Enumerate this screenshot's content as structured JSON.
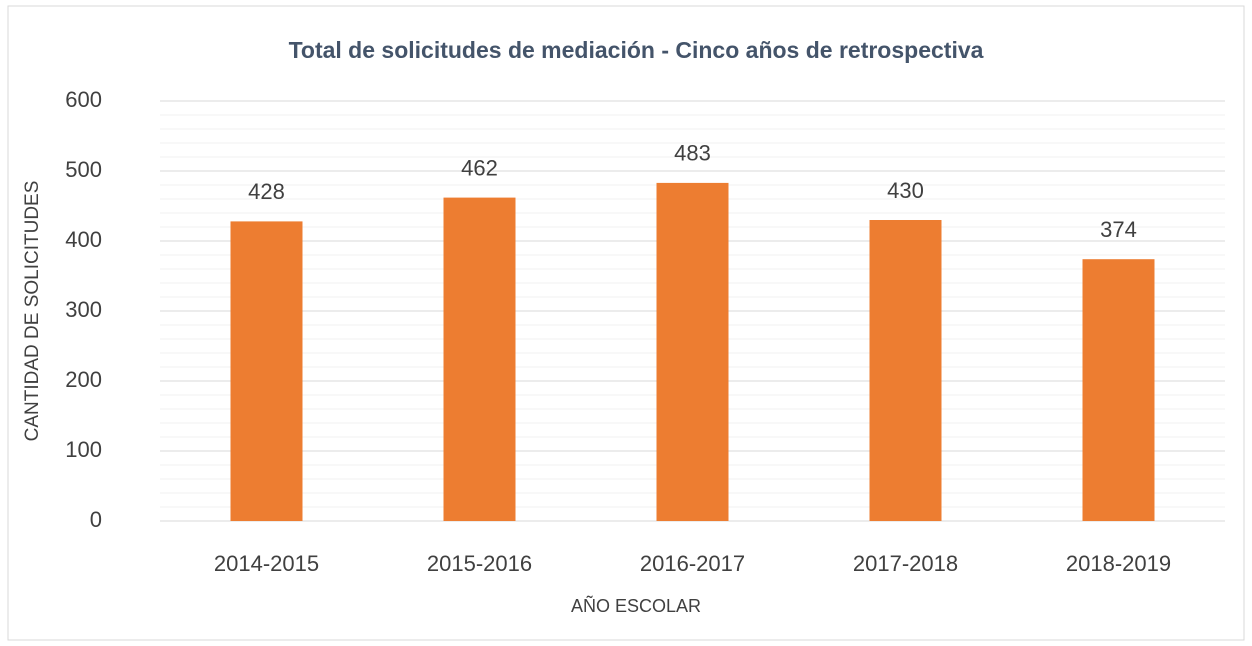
{
  "chart_data": {
    "type": "bar",
    "title": "Total de solicitudes de mediación - Cinco años de retrospectiva",
    "x_label": "AÑO ESCOLAR",
    "y_label": "CANTIDAD DE SOLICITUDES",
    "categories": [
      "2014-2015",
      "2015-2016",
      "2016-2017",
      "2017-2018",
      "2018-2019"
    ],
    "values": [
      428,
      462,
      483,
      430,
      374
    ],
    "color": "#ed7d31",
    "ylim": [
      0,
      600
    ],
    "yticks": [
      0,
      100,
      200,
      300,
      400,
      500,
      600
    ],
    "minor_yticks": [
      20,
      40,
      60,
      80,
      120,
      140,
      160,
      180,
      220,
      240,
      260,
      280,
      320,
      340,
      360,
      380,
      420,
      440,
      460,
      480,
      520,
      540,
      560,
      580
    ],
    "grid": true,
    "data_labels": true
  }
}
